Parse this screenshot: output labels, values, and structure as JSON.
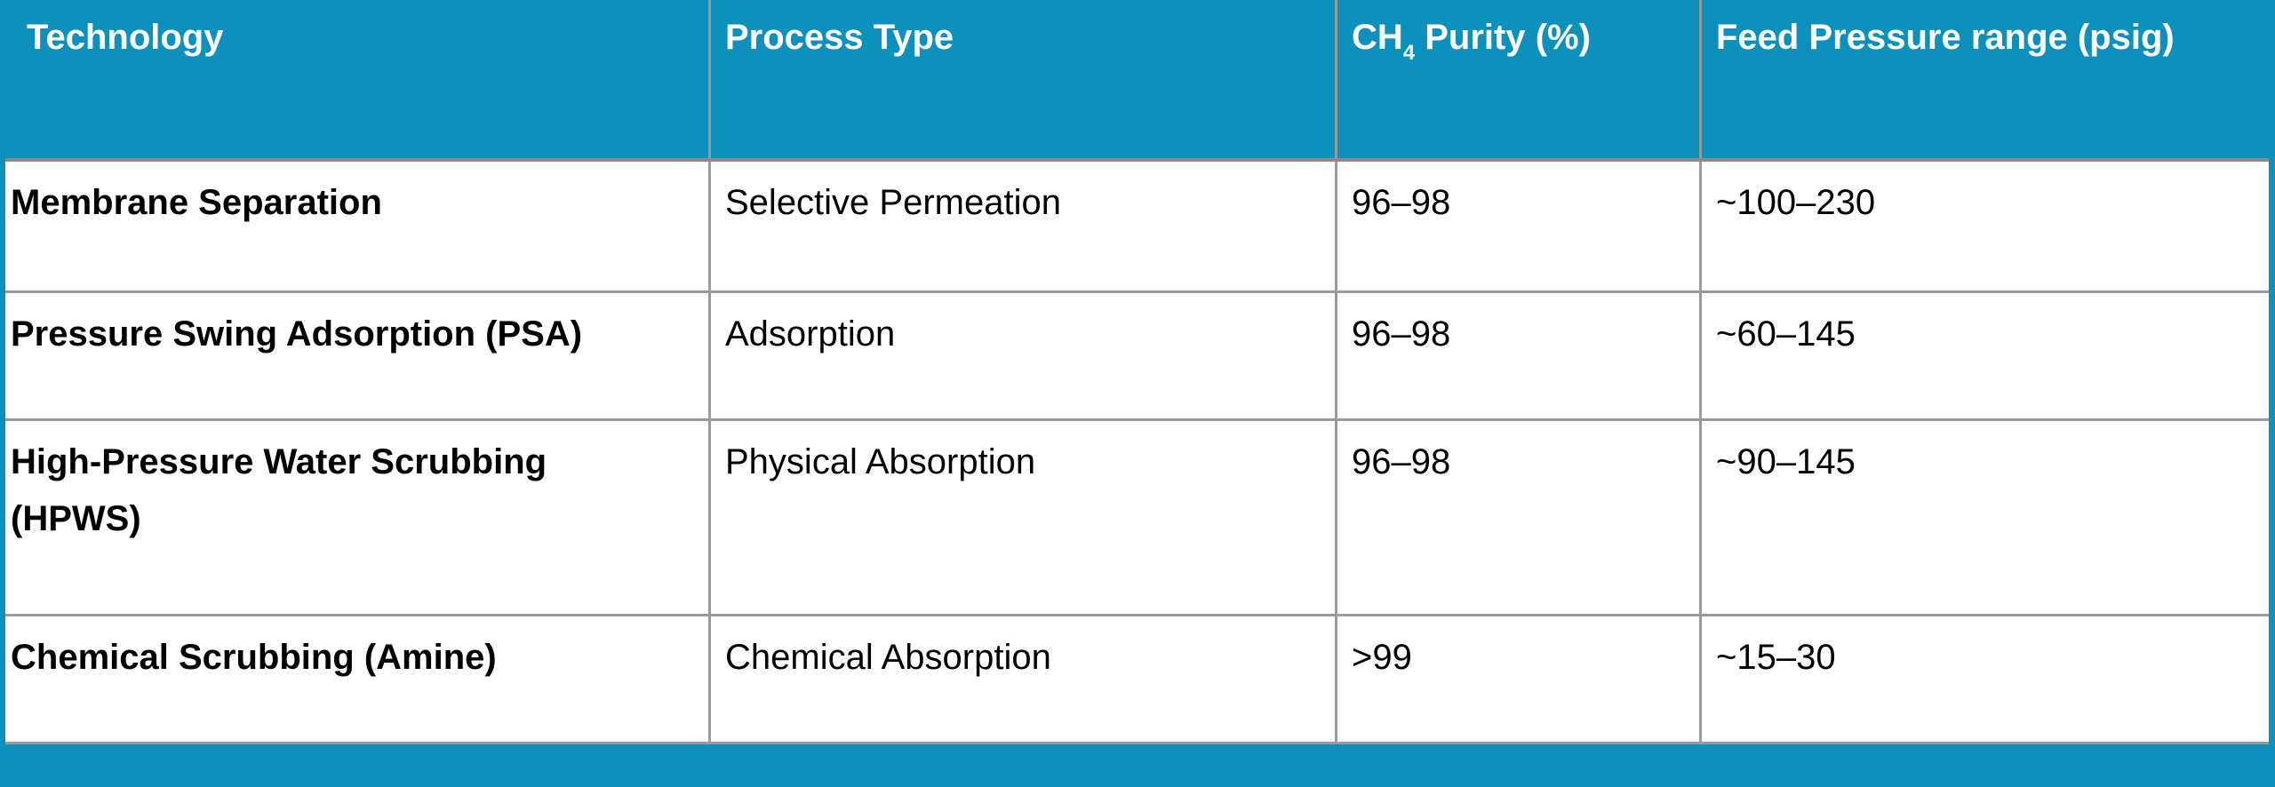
{
  "colors": {
    "accent_teal": "#0D90BC",
    "grid_line": "#9A9A9A",
    "header_underline": "#8A8A8A",
    "header_text": "#FFFFFF",
    "body_text": "#000000",
    "cell_background": "#FFFFFF"
  },
  "table": {
    "headers": [
      {
        "label": "Technology"
      },
      {
        "label": "Process Type"
      },
      {
        "prefix": "CH",
        "sub": "4",
        "suffix": " Purity (%)"
      },
      {
        "label": "Feed Pressure range (psig)"
      }
    ],
    "rows": [
      {
        "technology": "Membrane Separation",
        "process_type": "Selective Permeation",
        "ch4_purity": "96–98",
        "feed_pressure": "~100–230"
      },
      {
        "technology": "Pressure Swing Adsorption (PSA)",
        "process_type": "Adsorption",
        "ch4_purity": "96–98",
        "feed_pressure": "~60–145"
      },
      {
        "technology": "High-Pressure Water Scrubbing (HPWS)",
        "process_type": "Physical Absorption",
        "ch4_purity": "96–98",
        "feed_pressure": "~90–145"
      },
      {
        "technology": "Chemical Scrubbing (Amine)",
        "process_type": "Chemical Absorption",
        "ch4_purity": ">99",
        "feed_pressure": "~15–30"
      }
    ]
  },
  "chart_data": {
    "type": "table",
    "columns": [
      "Technology",
      "Process Type",
      "CH4 Purity (%)",
      "Feed Pressure range (psig)"
    ],
    "rows": [
      [
        "Membrane Separation",
        "Selective Permeation",
        "96–98",
        "~100–230"
      ],
      [
        "Pressure Swing Adsorption (PSA)",
        "Adsorption",
        "96–98",
        "~60–145"
      ],
      [
        "High-Pressure Water Scrubbing (HPWS)",
        "Physical Absorption",
        "96–98",
        "~90–145"
      ],
      [
        "Chemical Scrubbing (Amine)",
        "Chemical Absorption",
        ">99",
        "~15–30"
      ]
    ]
  }
}
